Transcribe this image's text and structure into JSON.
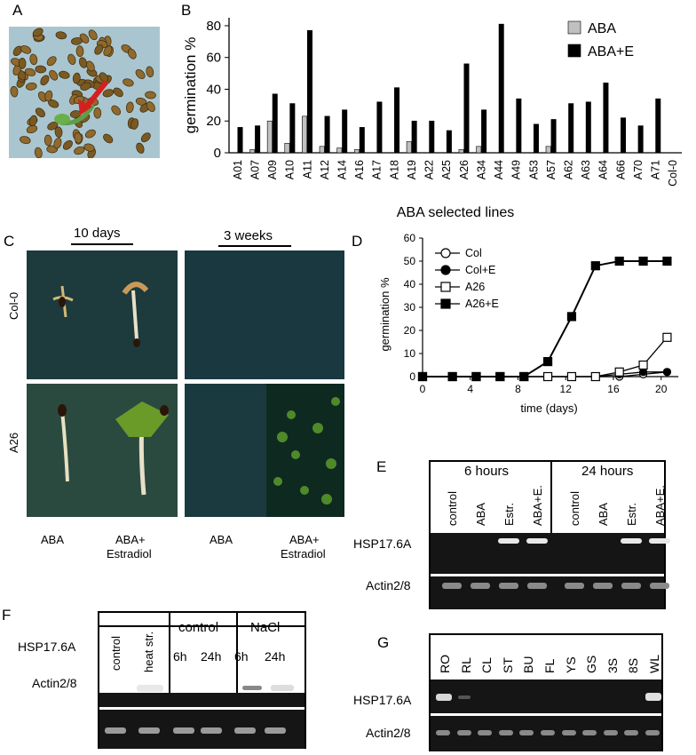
{
  "panels": {
    "A": "A",
    "B": "B",
    "C": "C",
    "D": "D",
    "E": "E",
    "F": "F",
    "G": "G"
  },
  "chart_data": [
    {
      "type": "bar",
      "panel": "B",
      "xlabel": "ABA selected lines",
      "ylabel": "germination %",
      "ylim": [
        0,
        85
      ],
      "yticks": [
        0,
        20,
        40,
        60,
        80
      ],
      "legend": "top-right",
      "categories": [
        "A01",
        "A07",
        "A09",
        "A10",
        "A11",
        "A12",
        "A14",
        "A16",
        "A17",
        "A18",
        "A19",
        "A22",
        "A25",
        "A26",
        "A34",
        "A44",
        "A49",
        "A53",
        "A57",
        "A62",
        "A63",
        "A64",
        "A66",
        "A70",
        "A71",
        "Col-0"
      ],
      "series": [
        {
          "name": "ABA",
          "color": "#c0c0c0",
          "values": [
            0,
            2,
            20,
            6,
            23,
            4,
            3,
            2,
            0,
            0,
            7,
            0,
            0,
            2,
            4,
            0,
            0,
            0,
            4,
            0,
            0,
            0,
            0,
            0,
            0,
            0
          ]
        },
        {
          "name": "ABA+E",
          "color": "#000000",
          "values": [
            16,
            17,
            37,
            31,
            77,
            23,
            27,
            16,
            32,
            41,
            20,
            20,
            14,
            56,
            27,
            81,
            34,
            18,
            21,
            31,
            32,
            44,
            22,
            17,
            34,
            0
          ]
        }
      ]
    },
    {
      "type": "line",
      "panel": "D",
      "xlabel": "time (days)",
      "ylabel": "germination %",
      "xlim": [
        0,
        21
      ],
      "ylim": [
        0,
        60
      ],
      "xticks": [
        0,
        4,
        8,
        12,
        16,
        20
      ],
      "yticks": [
        0,
        10,
        20,
        30,
        40,
        50,
        60
      ],
      "legend": "top-left",
      "x": [
        0,
        2.5,
        4.5,
        6.5,
        8.5,
        10.5,
        12.5,
        14.5,
        16.5,
        18.5,
        20.5
      ],
      "series": [
        {
          "name": "Col",
          "marker": "circle-open",
          "values": [
            0,
            0,
            0,
            0,
            0,
            0,
            0,
            0,
            0,
            1,
            2
          ]
        },
        {
          "name": "Col+E",
          "marker": "circle-filled",
          "values": [
            0,
            0,
            0,
            0,
            0,
            0,
            0,
            0,
            1,
            2,
            2
          ]
        },
        {
          "name": "A26",
          "marker": "square-open",
          "values": [
            0,
            0,
            0,
            0,
            0,
            0,
            0,
            0,
            2,
            5,
            17
          ]
        },
        {
          "name": "A26+E",
          "marker": "square-filled",
          "values": [
            0,
            0,
            0,
            0,
            0,
            6.5,
            26,
            48,
            50,
            50,
            50
          ]
        }
      ]
    }
  ],
  "panelC": {
    "header_left": "10 days",
    "header_right": "3 weeks",
    "row_labels": [
      "Col-0",
      "A26"
    ],
    "col_labels": [
      "ABA",
      "ABA+\nEstradiol",
      "ABA",
      "ABA+\nEstradiol"
    ],
    "col_label_lines": [
      [
        "ABA"
      ],
      [
        "ABA+",
        "Estradiol"
      ],
      [
        "ABA"
      ],
      [
        "ABA+",
        "Estradiol"
      ]
    ]
  },
  "panelE": {
    "group1": "6 hours",
    "group2": "24 hours",
    "lanes": [
      "control",
      "ABA",
      "Estr.",
      "ABA+E.",
      "control",
      "ABA",
      "Estr.",
      "ABA+E."
    ],
    "row_labels": [
      "HSP17.6A",
      "Actin2/8"
    ]
  },
  "panelF": {
    "lanes_a": [
      "control",
      "heat str."
    ],
    "group1": "control",
    "group2": "NaCl",
    "times": [
      "6h",
      "24h",
      "6h",
      "24h"
    ],
    "row_labels": [
      "HSP17.6A",
      "Actin2/8"
    ]
  },
  "panelG": {
    "lanes": [
      "RO",
      "RL",
      "CL",
      "ST",
      "BU",
      "FL",
      "YS",
      "GS",
      "3S",
      "8S",
      "WL"
    ],
    "row_labels": [
      "HSP17.6A",
      "Actin2/8"
    ]
  }
}
